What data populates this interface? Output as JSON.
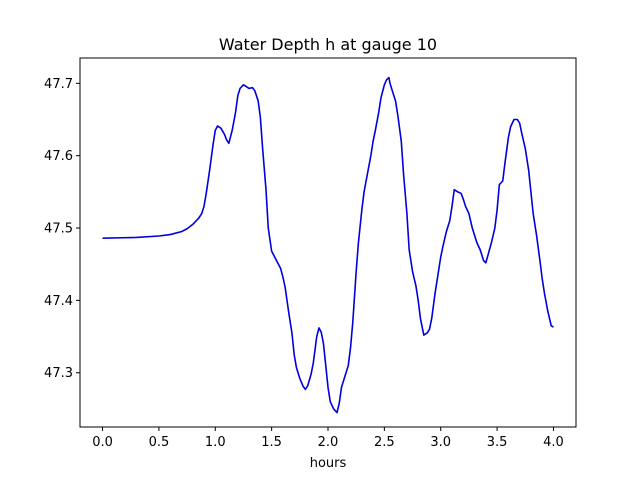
{
  "chart_data": {
    "type": "line",
    "title": "Water Depth h at gauge 10",
    "xlabel": "hours",
    "ylabel": "",
    "xlim": [
      -0.2,
      4.2
    ],
    "ylim": [
      47.225,
      47.735
    ],
    "x_ticks": [
      0.0,
      0.5,
      1.0,
      1.5,
      2.0,
      2.5,
      3.0,
      3.5,
      4.0
    ],
    "x_tick_labels": [
      "0.0",
      "0.5",
      "1.0",
      "1.5",
      "2.0",
      "2.5",
      "3.0",
      "3.5",
      "4.0"
    ],
    "y_ticks": [
      47.3,
      47.4,
      47.5,
      47.6,
      47.7
    ],
    "y_tick_labels": [
      "47.3",
      "47.4",
      "47.5",
      "47.6",
      "47.7"
    ],
    "grid": false,
    "series": [
      {
        "color": "#0000dd",
        "x": [
          0.0,
          0.3,
          0.5,
          0.6,
          0.7,
          0.75,
          0.8,
          0.85,
          0.88,
          0.9,
          0.92,
          0.95,
          0.98,
          1.0,
          1.02,
          1.05,
          1.08,
          1.1,
          1.12,
          1.15,
          1.18,
          1.2,
          1.22,
          1.25,
          1.27,
          1.3,
          1.33,
          1.35,
          1.38,
          1.4,
          1.42,
          1.45,
          1.47,
          1.5,
          1.52,
          1.55,
          1.58,
          1.6,
          1.62,
          1.65,
          1.68,
          1.7,
          1.72,
          1.75,
          1.78,
          1.8,
          1.82,
          1.85,
          1.87,
          1.9,
          1.92,
          1.94,
          1.96,
          1.98,
          2.0,
          2.02,
          2.05,
          2.08,
          2.1,
          2.12,
          2.15,
          2.18,
          2.2,
          2.22,
          2.25,
          2.27,
          2.3,
          2.32,
          2.35,
          2.38,
          2.4,
          2.42,
          2.45,
          2.47,
          2.5,
          2.52,
          2.54,
          2.55,
          2.57,
          2.6,
          2.62,
          2.65,
          2.67,
          2.7,
          2.72,
          2.75,
          2.78,
          2.8,
          2.82,
          2.85,
          2.88,
          2.9,
          2.92,
          2.95,
          2.98,
          3.0,
          3.02,
          3.05,
          3.08,
          3.1,
          3.12,
          3.15,
          3.18,
          3.2,
          3.22,
          3.25,
          3.28,
          3.3,
          3.32,
          3.35,
          3.38,
          3.4,
          3.42,
          3.45,
          3.48,
          3.5,
          3.52,
          3.55,
          3.57,
          3.6,
          3.62,
          3.65,
          3.68,
          3.7,
          3.72,
          3.75,
          3.78,
          3.8,
          3.82,
          3.85,
          3.88,
          3.9,
          3.92,
          3.95,
          3.98,
          4.0
        ],
        "y": [
          47.486,
          47.487,
          47.489,
          47.491,
          47.495,
          47.499,
          47.505,
          47.513,
          47.52,
          47.53,
          47.548,
          47.58,
          47.615,
          47.635,
          47.641,
          47.638,
          47.63,
          47.622,
          47.617,
          47.635,
          47.66,
          47.683,
          47.693,
          47.698,
          47.696,
          47.693,
          47.694,
          47.69,
          47.676,
          47.653,
          47.61,
          47.553,
          47.5,
          47.468,
          47.462,
          47.453,
          47.444,
          47.432,
          47.418,
          47.385,
          47.355,
          47.325,
          47.307,
          47.292,
          47.281,
          47.277,
          47.282,
          47.298,
          47.314,
          47.35,
          47.362,
          47.356,
          47.34,
          47.31,
          47.28,
          47.26,
          47.25,
          47.245,
          47.258,
          47.28,
          47.295,
          47.31,
          47.335,
          47.37,
          47.44,
          47.48,
          47.525,
          47.55,
          47.575,
          47.6,
          47.62,
          47.635,
          47.66,
          47.68,
          47.698,
          47.705,
          47.708,
          47.7,
          47.69,
          47.675,
          47.655,
          47.62,
          47.575,
          47.52,
          47.47,
          47.44,
          47.42,
          47.4,
          47.375,
          47.352,
          47.355,
          47.36,
          47.375,
          47.41,
          47.44,
          47.46,
          47.475,
          47.495,
          47.51,
          47.53,
          47.553,
          47.55,
          47.548,
          47.54,
          47.53,
          47.52,
          47.5,
          47.49,
          47.48,
          47.47,
          47.455,
          47.452,
          47.463,
          47.48,
          47.5,
          47.525,
          47.56,
          47.565,
          47.59,
          47.625,
          47.64,
          47.65,
          47.65,
          47.645,
          47.63,
          47.61,
          47.58,
          47.55,
          47.52,
          47.49,
          47.455,
          47.43,
          47.41,
          47.385,
          47.365,
          47.363
        ]
      }
    ]
  }
}
